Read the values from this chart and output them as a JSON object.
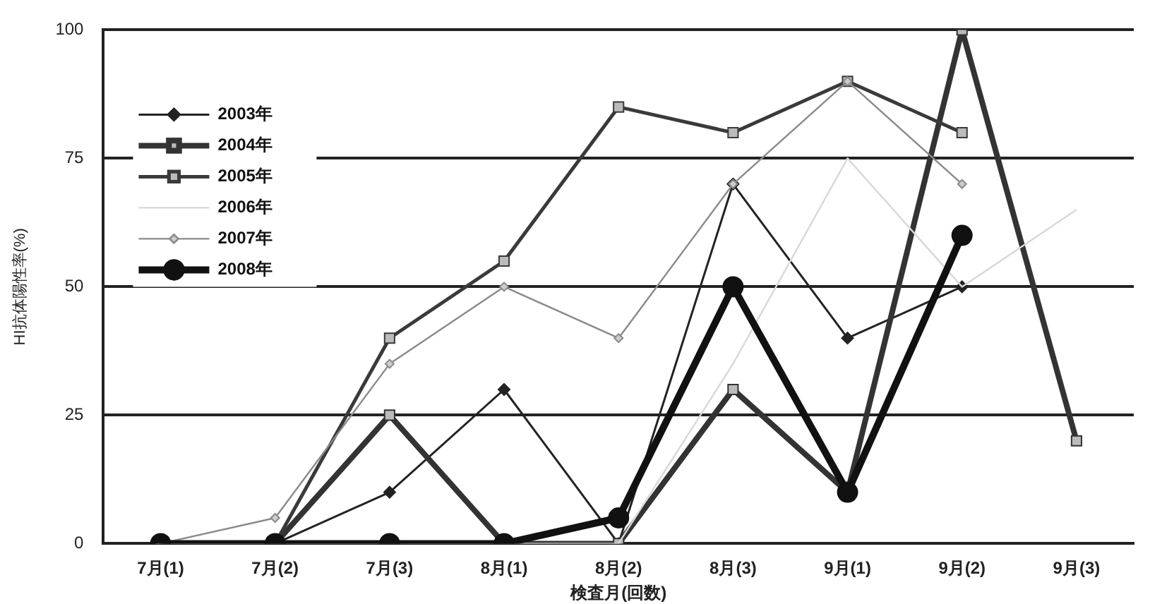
{
  "chart_data": {
    "type": "line",
    "xlabel": "検査月(回数)",
    "ylabel": "HI抗体陽性率(%)",
    "categories": [
      "7月(1)",
      "7月(2)",
      "7月(3)",
      "8月(1)",
      "8月(2)",
      "8月(3)",
      "9月(1)",
      "9月(2)",
      "9月(3)"
    ],
    "series": [
      {
        "name": "2003年",
        "color": "#222222",
        "marker": "diamond",
        "values": [
          0,
          0,
          10,
          30,
          0,
          70,
          40,
          50,
          null
        ]
      },
      {
        "name": "2004年",
        "color": "#333333",
        "marker": "square",
        "values": [
          0,
          0,
          25,
          0,
          0,
          30,
          10,
          100,
          20
        ]
      },
      {
        "name": "2005年",
        "color": "#3a3a3a",
        "marker": "square",
        "values": [
          0,
          0,
          40,
          55,
          85,
          80,
          90,
          80,
          null
        ]
      },
      {
        "name": "2006年",
        "color": "#d8d8d8",
        "marker": "none",
        "values": [
          0,
          0,
          0,
          0,
          0,
          35,
          75,
          50,
          65
        ]
      },
      {
        "name": "2007年",
        "color": "#8a8a8a",
        "marker": "diamond",
        "values": [
          0,
          5,
          35,
          50,
          40,
          70,
          90,
          70,
          null
        ]
      },
      {
        "name": "2008年",
        "color": "#111111",
        "marker": "circle",
        "values": [
          0,
          0,
          0,
          0,
          5,
          50,
          10,
          60,
          null
        ]
      }
    ],
    "ylim": [
      0,
      100
    ],
    "yticks": [
      0,
      25,
      50,
      75,
      100
    ],
    "grid": "y",
    "legend": "top left"
  }
}
